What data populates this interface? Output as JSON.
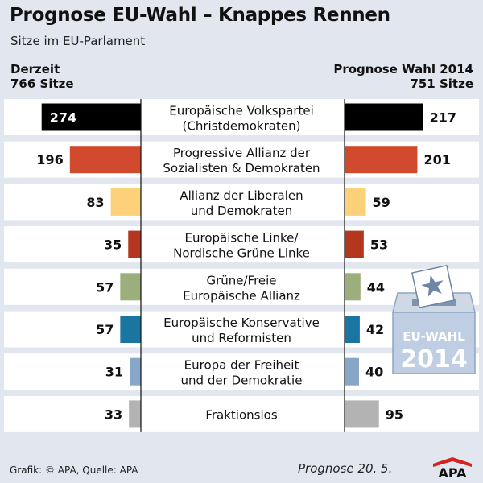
{
  "title": "Prognose EU-Wahl – Knappes Rennen",
  "subtitle": "Sitze im EU-Parlament",
  "left_header": {
    "line1": "Derzeit",
    "line2": "766 Sitze"
  },
  "right_header": {
    "line1": "Prognose Wahl 2014",
    "line2": "751 Sitze"
  },
  "footer": {
    "source": "Grafik: © APA, Quelle: APA",
    "date": "Prognose 20. 5."
  },
  "logo_text": "APA",
  "ballot_box": {
    "line1": "EU-WAHL",
    "line2": "2014"
  },
  "chart_data": {
    "type": "bar",
    "title": "Prognose EU-Wahl – Knappes Rennen",
    "subtitle": "Sitze im EU-Parlament",
    "categories": [
      [
        "Europäische Volkspartei",
        "(Christdemokraten)"
      ],
      [
        "Progressive Allianz der",
        "Sozialisten & Demokraten"
      ],
      [
        "Allianz der Liberalen",
        "und Demokraten"
      ],
      [
        "Europäische Linke/",
        "Nordische Grüne Linke"
      ],
      [
        "Grüne/Freie",
        "Europäische Allianz"
      ],
      [
        "Europäische Konservative",
        "und Reformisten"
      ],
      [
        "Europa der Freiheit",
        "und der Demokratie"
      ],
      [
        "Fraktionslos"
      ]
    ],
    "series": [
      {
        "name": "Derzeit 766 Sitze",
        "values": [
          274,
          196,
          83,
          35,
          57,
          57,
          31,
          33
        ]
      },
      {
        "name": "Prognose Wahl 2014 751 Sitze",
        "values": [
          217,
          201,
          59,
          53,
          44,
          42,
          40,
          95
        ]
      }
    ],
    "colors": [
      "#000000",
      "#d24a2d",
      "#fdd07a",
      "#b5361e",
      "#9cae7b",
      "#1a76a0",
      "#88a7c8",
      "#b3b3b3"
    ],
    "legend": "none",
    "grid": false
  }
}
